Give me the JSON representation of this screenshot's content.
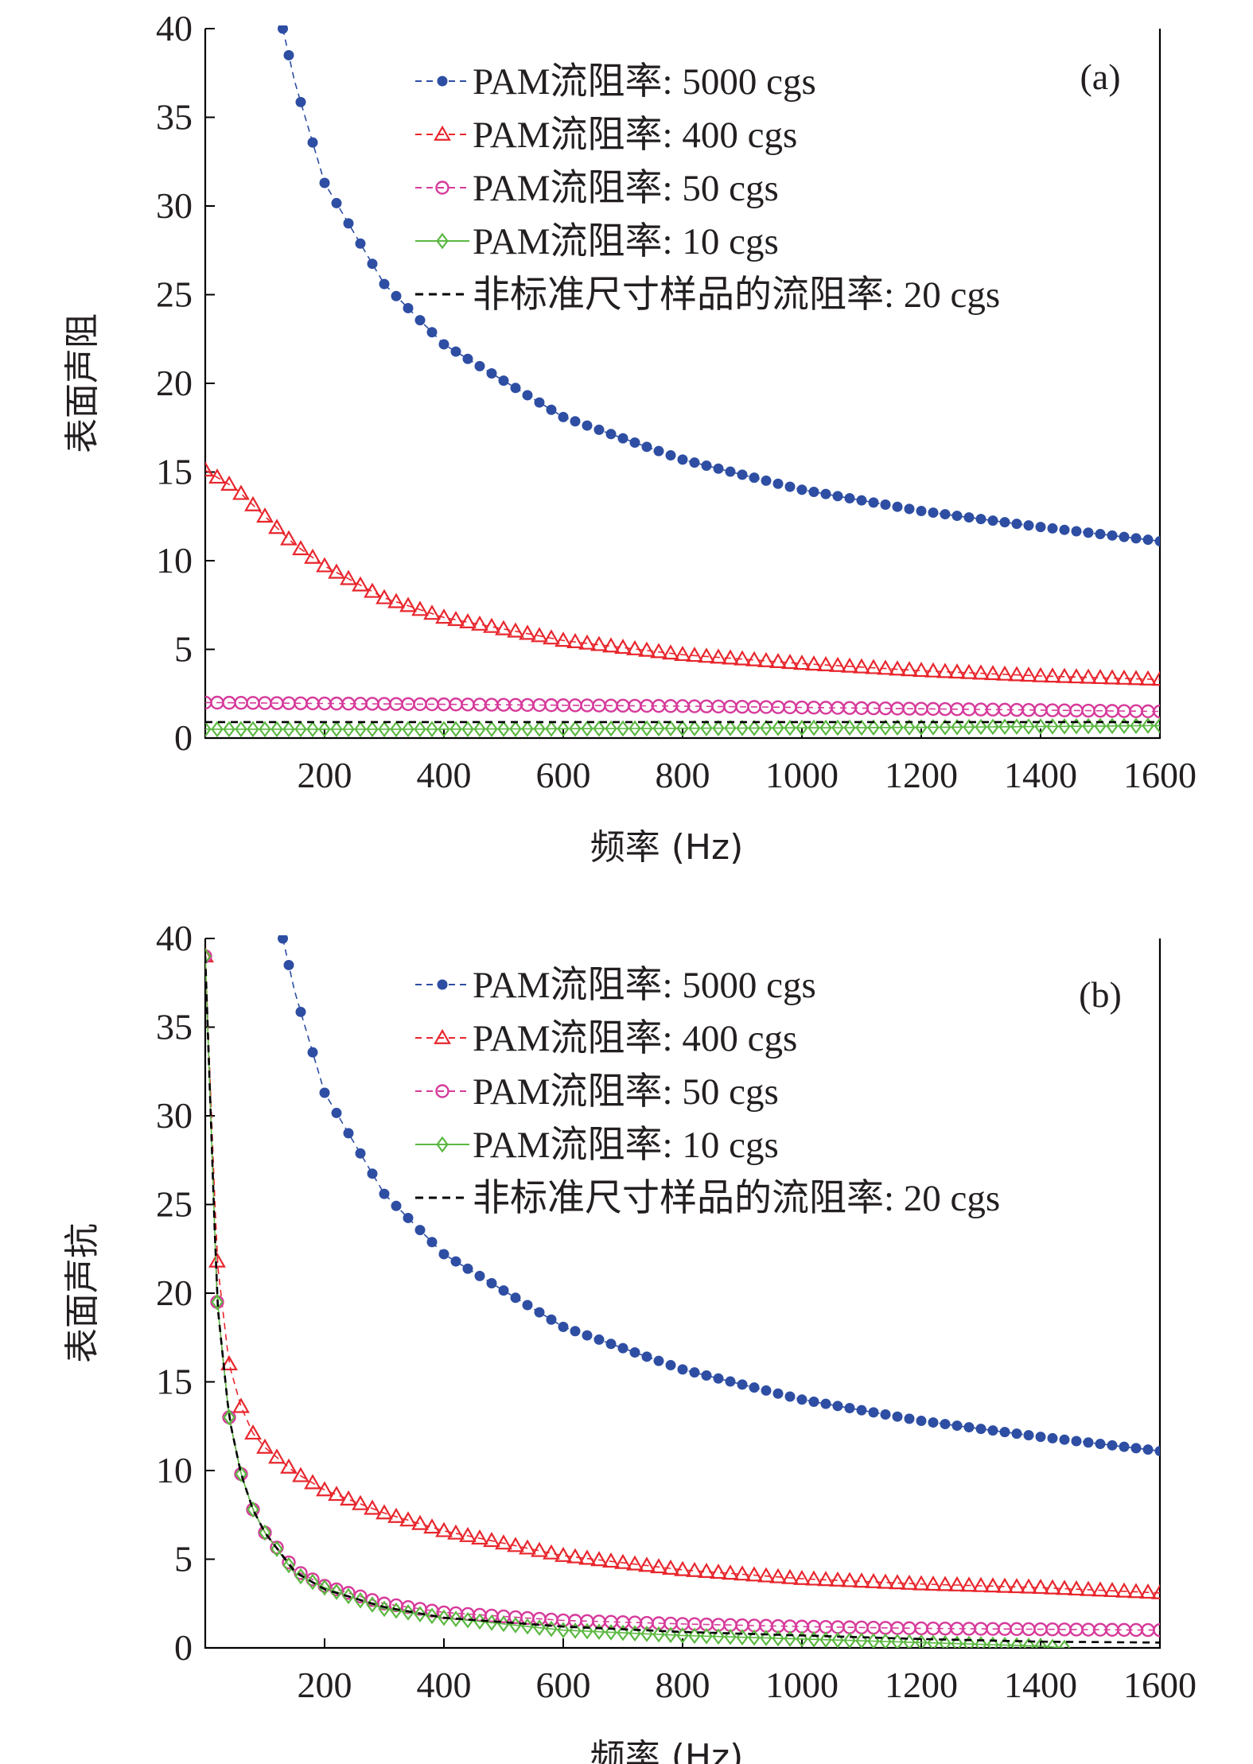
{
  "chart_data": [
    {
      "type": "line",
      "panel_label": "(a)",
      "xlabel": "频率 (Hz)",
      "ylabel": "表面声阻",
      "xlim": [
        0,
        1600
      ],
      "ylim": [
        0,
        40
      ],
      "xticks": [
        200,
        400,
        600,
        800,
        1000,
        1200,
        1400,
        1600
      ],
      "yticks": [
        0,
        5,
        10,
        15,
        20,
        25,
        30,
        35,
        40
      ],
      "legend_position": "top-right",
      "grid": false,
      "series": [
        {
          "name": "PAM流阻率: 5000 cgs",
          "color": "#2e4ea3",
          "marker": "dot",
          "line_style": "dashed",
          "x": [
            130,
            150,
            200,
            300,
            400,
            600,
            800,
            1000,
            1200,
            1400,
            1600
          ],
          "y": [
            40.0,
            37.0,
            31.3,
            25.6,
            22.2,
            18.1,
            15.7,
            14.0,
            12.8,
            11.9,
            11.1
          ]
        },
        {
          "name": "PAM流阻率: 400 cgs",
          "color": "#e8262d",
          "marker": "triangle",
          "line_style": "dashed",
          "x": [
            0,
            50,
            100,
            150,
            200,
            300,
            400,
            600,
            800,
            1000,
            1200,
            1400,
            1600
          ],
          "y": [
            15.1,
            14.1,
            12.5,
            10.9,
            9.7,
            7.9,
            6.8,
            5.5,
            4.7,
            4.2,
            3.8,
            3.5,
            3.3
          ]
        },
        {
          "name": "PAM流阻率: 50 cgs",
          "color": "#d63b9b",
          "marker": "circle",
          "line_style": "dashed",
          "x": [
            0,
            400,
            800,
            1200,
            1600
          ],
          "y": [
            2.0,
            1.9,
            1.8,
            1.65,
            1.5
          ]
        },
        {
          "name": "PAM流阻率: 10 cgs",
          "color": "#5cb842",
          "marker": "diamond",
          "line_style": "solid",
          "x": [
            0,
            400,
            800,
            1200,
            1600
          ],
          "y": [
            0.5,
            0.5,
            0.55,
            0.6,
            0.7
          ]
        },
        {
          "name": "非标准尺寸样品的流阻率: 20 cgs",
          "color": "#000000",
          "marker": "none",
          "line_style": "dashed",
          "x": [
            0,
            1600
          ],
          "y": [
            0.9,
            0.9
          ]
        }
      ]
    },
    {
      "type": "line",
      "panel_label": "(b)",
      "xlabel": "频率 (Hz)",
      "ylabel": "表面声抗",
      "xlim": [
        0,
        1600
      ],
      "ylim": [
        0,
        40
      ],
      "xticks": [
        200,
        400,
        600,
        800,
        1000,
        1200,
        1400,
        1600
      ],
      "yticks": [
        0,
        5,
        10,
        15,
        20,
        25,
        30,
        35,
        40
      ],
      "legend_position": "top-right",
      "grid": false,
      "series": [
        {
          "name": "PAM流阻率: 5000 cgs",
          "color": "#2e4ea3",
          "marker": "dot",
          "line_style": "dashed",
          "x": [
            130,
            150,
            200,
            300,
            400,
            600,
            800,
            1000,
            1200,
            1400,
            1600
          ],
          "y": [
            40.0,
            37.0,
            31.3,
            25.6,
            22.2,
            18.1,
            15.7,
            14.0,
            12.8,
            11.9,
            11.1
          ]
        },
        {
          "name": "PAM流阻率: 400 cgs",
          "color": "#e8262d",
          "marker": "triangle",
          "line_style": "dashed",
          "x": [
            0,
            20,
            40,
            60,
            80,
            100,
            150,
            200,
            300,
            400,
            600,
            800,
            1000,
            1200,
            1400,
            1600
          ],
          "y": [
            39.0,
            21.8,
            16.0,
            13.6,
            12.1,
            11.3,
            9.9,
            8.9,
            7.6,
            6.6,
            5.2,
            4.4,
            3.9,
            3.6,
            3.4,
            3.1
          ]
        },
        {
          "name": "PAM流阻率: 50 cgs",
          "color": "#d63b9b",
          "marker": "circle",
          "line_style": "dashed",
          "x": [
            0,
            20,
            40,
            60,
            80,
            100,
            150,
            200,
            300,
            400,
            600,
            800,
            1000,
            1200,
            1400,
            1600
          ],
          "y": [
            39.0,
            19.5,
            13.0,
            9.8,
            7.8,
            6.5,
            4.4,
            3.5,
            2.5,
            2.0,
            1.55,
            1.35,
            1.2,
            1.1,
            1.05,
            1.0
          ]
        },
        {
          "name": "PAM流阻率: 10 cgs",
          "color": "#5cb842",
          "marker": "diamond",
          "line_style": "solid",
          "x": [
            0,
            20,
            40,
            60,
            80,
            100,
            150,
            200,
            300,
            400,
            600,
            800,
            1000,
            1200,
            1400,
            1440
          ],
          "y": [
            39.0,
            19.5,
            13.0,
            9.8,
            7.8,
            6.5,
            4.2,
            3.4,
            2.2,
            1.7,
            1.0,
            0.7,
            0.5,
            0.3,
            0.1,
            0.0
          ]
        },
        {
          "name": "非标准尺寸样品的流阻率: 20 cgs",
          "color": "#000000",
          "marker": "none",
          "line_style": "dashed",
          "x": [
            0,
            20,
            40,
            60,
            80,
            100,
            150,
            200,
            300,
            400,
            600,
            800,
            1000,
            1200,
            1400,
            1600
          ],
          "y": [
            39.0,
            19.5,
            13.0,
            9.8,
            7.8,
            6.5,
            4.3,
            3.3,
            2.3,
            1.7,
            1.2,
            0.9,
            0.7,
            0.5,
            0.35,
            0.3
          ]
        }
      ]
    }
  ]
}
